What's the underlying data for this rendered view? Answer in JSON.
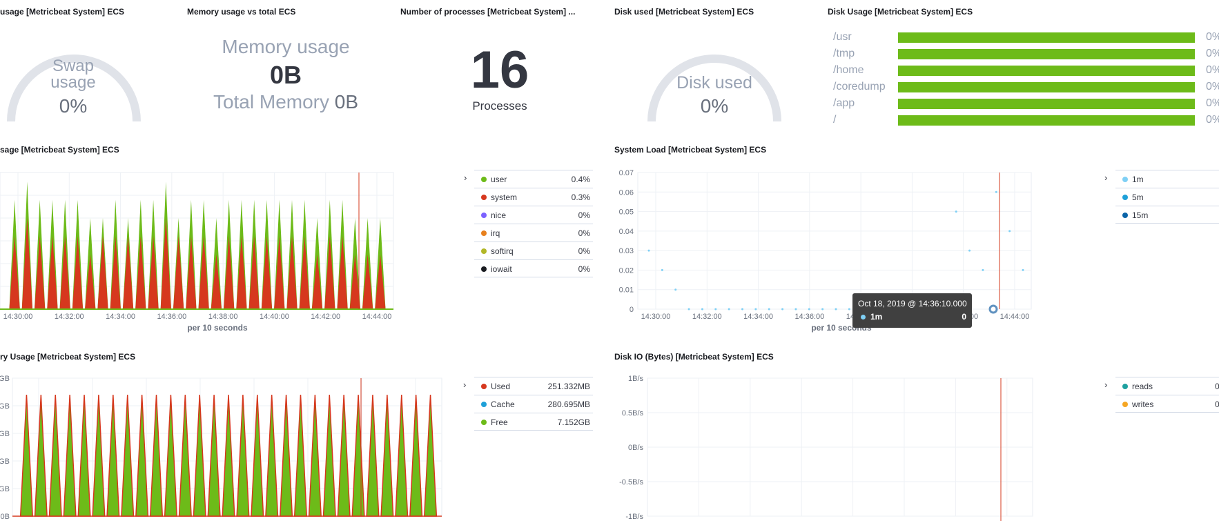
{
  "panels": {
    "swap": {
      "title": "usage [Metricbeat System] ECS",
      "label_line1": "Swap",
      "label_line2": "usage",
      "value": "0%",
      "fraction": 0
    },
    "memory_total": {
      "title": "Memory usage vs total ECS",
      "usage_label": "Memory usage",
      "usage_value": "0B",
      "total_label": "Total Memory",
      "total_value": "0B"
    },
    "processes": {
      "title": "Number of processes [Metricbeat System] ...",
      "value": "16",
      "label": "Processes"
    },
    "disk_used": {
      "title": "Disk used [Metricbeat System] ECS",
      "label": "Disk used",
      "value": "0%",
      "fraction": 0
    },
    "disk_usage": {
      "title": "Disk Usage [Metricbeat System] ECS",
      "rows": [
        {
          "name": "/usr",
          "value": "0%"
        },
        {
          "name": "/tmp",
          "value": "0%"
        },
        {
          "name": "/home",
          "value": "0%"
        },
        {
          "name": "/coredump",
          "value": "0%"
        },
        {
          "name": "/app",
          "value": "0%"
        },
        {
          "name": "/",
          "value": "0%"
        }
      ]
    },
    "cpu": {
      "title": "sage [Metricbeat System] ECS",
      "x_label": "per 10 seconds",
      "legend_toggle": "›",
      "legend": [
        {
          "name": "user",
          "value": "0.4%",
          "color": "#6dbb19"
        },
        {
          "name": "system",
          "value": "0.3%",
          "color": "#d6381e"
        },
        {
          "name": "nice",
          "value": "0%",
          "color": "#7b61ff"
        },
        {
          "name": "irq",
          "value": "0%",
          "color": "#e7801d"
        },
        {
          "name": "softirq",
          "value": "0%",
          "color": "#b2b728"
        },
        {
          "name": "iowait",
          "value": "0%",
          "color": "#1a1c21"
        }
      ]
    },
    "load": {
      "title": "System Load [Metricbeat System] ECS",
      "x_label": "per 10 seconds",
      "legend_toggle": "›",
      "legend": [
        {
          "name": "1m",
          "color": "#7fd0f5"
        },
        {
          "name": "5m",
          "color": "#1ea0d8"
        },
        {
          "name": "15m",
          "color": "#0b64a8"
        }
      ],
      "tooltip": {
        "date": "Oct 18, 2019 @ 14:36:10.000",
        "series": "1m",
        "value": "0"
      }
    },
    "memory": {
      "title": "ry Usage [Metricbeat System] ECS",
      "legend_toggle": "›",
      "legend": [
        {
          "name": "Used",
          "value": "251.332MB",
          "color": "#d6381e"
        },
        {
          "name": "Cache",
          "value": "280.695MB",
          "color": "#1ea0d8"
        },
        {
          "name": "Free",
          "value": "7.152GB",
          "color": "#6dbb19"
        }
      ]
    },
    "diskio": {
      "title": "Disk IO (Bytes) [Metricbeat System] ECS",
      "legend_toggle": "›",
      "legend": [
        {
          "name": "reads",
          "value": "0",
          "color": "#1ea1a0"
        },
        {
          "name": "writes",
          "value": "0",
          "color": "#f5a623"
        }
      ]
    }
  },
  "chart_data": [
    {
      "type": "area",
      "title": "",
      "x_ticks": [
        "14:30:00",
        "14:32:00",
        "14:34:00",
        "14:36:00",
        "14:38:00",
        "14:40:00",
        "14:42:00",
        "14:44:00"
      ],
      "xlabel": "per 10 seconds",
      "series": [
        {
          "name": "user",
          "color": "#6dbb19",
          "peaks": [
            0.6,
            0.7,
            0.6,
            0.6,
            0.6,
            0.6,
            0.5,
            0.5,
            0.6,
            0.5,
            0.6,
            0.6,
            0.7,
            0.5,
            0.6,
            0.6,
            0.5,
            0.6,
            0.6,
            0.6,
            0.6,
            0.6,
            0.6,
            0.6,
            0.5,
            0.6,
            0.6,
            0.5,
            0.5,
            0.5
          ]
        },
        {
          "name": "system",
          "color": "#d6381e",
          "peaks": [
            0.4,
            0.5,
            0.4,
            0.4,
            0.4,
            0.4,
            0.3,
            0.4,
            0.4,
            0.4,
            0.4,
            0.4,
            0.5,
            0.4,
            0.4,
            0.4,
            0.3,
            0.4,
            0.4,
            0.4,
            0.4,
            0.4,
            0.4,
            0.4,
            0.3,
            0.4,
            0.4,
            0.3,
            0.3,
            0.3
          ]
        }
      ]
    },
    {
      "type": "scatter",
      "title": "",
      "x_ticks": [
        "14:30:00",
        "14:32:00",
        "14:34:00",
        "14:36:00",
        "14:38:00",
        "14:40:00",
        "14:42:00",
        "14:44:00"
      ],
      "xlabel": "per 10 seconds",
      "y_ticks": [
        "0",
        "0.01",
        "0.02",
        "0.03",
        "0.04",
        "0.05",
        "0.06",
        "0.07"
      ],
      "ylim": [
        0,
        0.07
      ],
      "series": [
        {
          "name": "1m",
          "color": "#7fd0f5",
          "points": [
            [
              0,
              0.03
            ],
            [
              1,
              0.02
            ],
            [
              2,
              0.01
            ],
            [
              3,
              0
            ],
            [
              4,
              0
            ],
            [
              5,
              0
            ],
            [
              6,
              0
            ],
            [
              7,
              0
            ],
            [
              8,
              0
            ],
            [
              9,
              0
            ],
            [
              10,
              0
            ],
            [
              11,
              0
            ],
            [
              12,
              0
            ],
            [
              13,
              0
            ],
            [
              14,
              0
            ],
            [
              15,
              0
            ],
            [
              16,
              0
            ],
            [
              17,
              0
            ],
            [
              18,
              0
            ],
            [
              19,
              0
            ],
            [
              20,
              0
            ],
            [
              21,
              0
            ],
            [
              22,
              0
            ],
            [
              23,
              0.05
            ],
            [
              24,
              0.03
            ],
            [
              25,
              0.02
            ],
            [
              26,
              0.06
            ],
            [
              27,
              0.04
            ],
            [
              28,
              0.02
            ]
          ]
        }
      ]
    },
    {
      "type": "area",
      "title": "",
      "y_ticks": [
        "0B",
        "GB",
        "GB",
        "GB",
        "GB",
        "GB"
      ],
      "series": [
        {
          "name": "Free",
          "color": "#6dbb19",
          "peaks_fraction": 0.88
        },
        {
          "name": "Used",
          "color": "#d6381e",
          "peaks_fraction": 0.88
        }
      ]
    },
    {
      "type": "line",
      "title": "",
      "y_ticks": [
        "1B/s",
        "0.5B/s",
        "0B/s",
        "-0.5B/s",
        "-1B/s"
      ],
      "series": [
        {
          "name": "reads",
          "color": "#1ea1a0",
          "values": []
        },
        {
          "name": "writes",
          "color": "#f5a623",
          "values": []
        }
      ]
    }
  ]
}
